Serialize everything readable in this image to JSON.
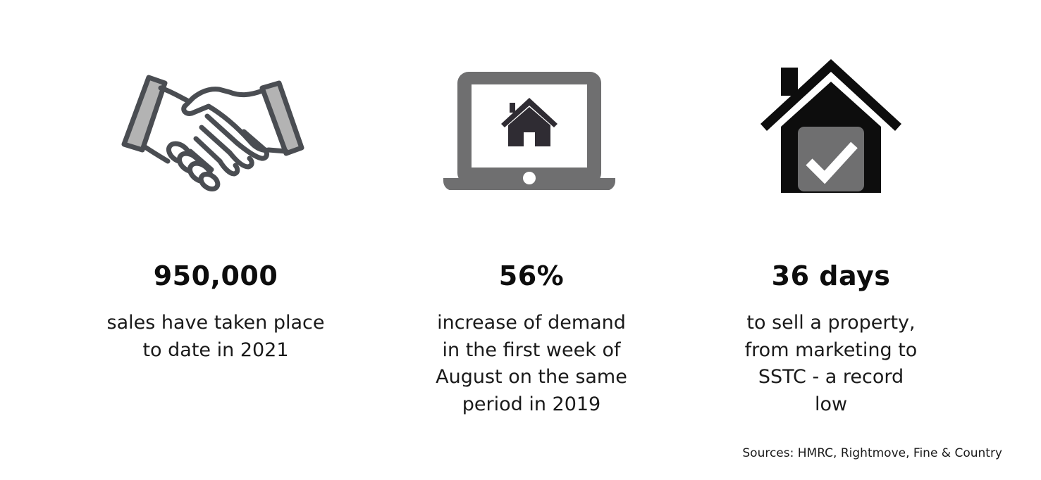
{
  "stats": [
    {
      "icon": "handshake-icon",
      "value": "950,000",
      "lines": [
        "sales have taken place",
        "to date in 2021"
      ]
    },
    {
      "icon": "laptop-house-icon",
      "value": "56%",
      "lines": [
        "increase of demand",
        "in the first week of",
        "August on the same",
        "period in 2019"
      ]
    },
    {
      "icon": "house-check-icon",
      "value": "36 days",
      "lines": [
        "to sell a property,",
        "from marketing to",
        "SSTC - a record",
        "low"
      ]
    }
  ],
  "sources": "Sources: HMRC, Rightmove, Fine & Country",
  "colors": {
    "dark_gray": "#4a4d52",
    "mid_gray": "#6f6f70",
    "light_gray": "#b3b3b3",
    "near_black": "#0d0d0d"
  }
}
